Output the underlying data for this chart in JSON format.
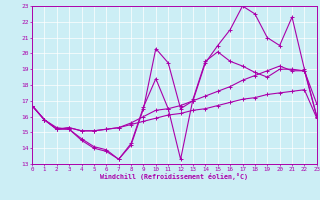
{
  "xlabel": "Windchill (Refroidissement éolien,°C)",
  "background_color": "#cceef5",
  "line_color": "#aa00aa",
  "grid_color": "#b0d8e0",
  "xlim": [
    0,
    23
  ],
  "ylim": [
    13,
    23
  ],
  "xticks": [
    0,
    1,
    2,
    3,
    4,
    5,
    6,
    7,
    8,
    9,
    10,
    11,
    12,
    13,
    14,
    15,
    16,
    17,
    18,
    19,
    20,
    21,
    22,
    23
  ],
  "yticks": [
    13,
    14,
    15,
    16,
    17,
    18,
    19,
    20,
    21,
    22,
    23
  ],
  "hours": [
    0,
    1,
    2,
    3,
    4,
    5,
    6,
    7,
    8,
    9,
    10,
    11,
    12,
    13,
    14,
    15,
    16,
    17,
    18,
    19,
    20,
    21,
    22,
    23
  ],
  "line1": [
    16.7,
    15.8,
    15.2,
    15.2,
    14.5,
    14.0,
    13.8,
    13.3,
    14.2,
    16.5,
    20.3,
    19.4,
    16.5,
    17.0,
    19.4,
    20.5,
    21.5,
    23.0,
    22.5,
    21.0,
    20.5,
    22.3,
    19.0,
    16.0
  ],
  "line2": [
    16.7,
    15.8,
    15.3,
    15.2,
    14.6,
    14.1,
    13.9,
    13.3,
    14.3,
    16.6,
    18.4,
    16.5,
    13.3,
    17.1,
    19.5,
    20.1,
    19.5,
    19.2,
    18.8,
    18.5,
    19.0,
    19.0,
    18.9,
    16.8
  ],
  "line3": [
    16.7,
    15.8,
    15.2,
    15.3,
    15.1,
    15.1,
    15.2,
    15.3,
    15.5,
    15.7,
    15.9,
    16.1,
    16.2,
    16.4,
    16.5,
    16.7,
    16.9,
    17.1,
    17.2,
    17.4,
    17.5,
    17.6,
    17.7,
    15.9
  ],
  "line4": [
    16.7,
    15.8,
    15.2,
    15.3,
    15.1,
    15.1,
    15.2,
    15.3,
    15.6,
    16.0,
    16.4,
    16.5,
    16.7,
    17.0,
    17.3,
    17.6,
    17.9,
    18.3,
    18.6,
    18.9,
    19.2,
    18.9,
    18.9,
    16.0
  ]
}
